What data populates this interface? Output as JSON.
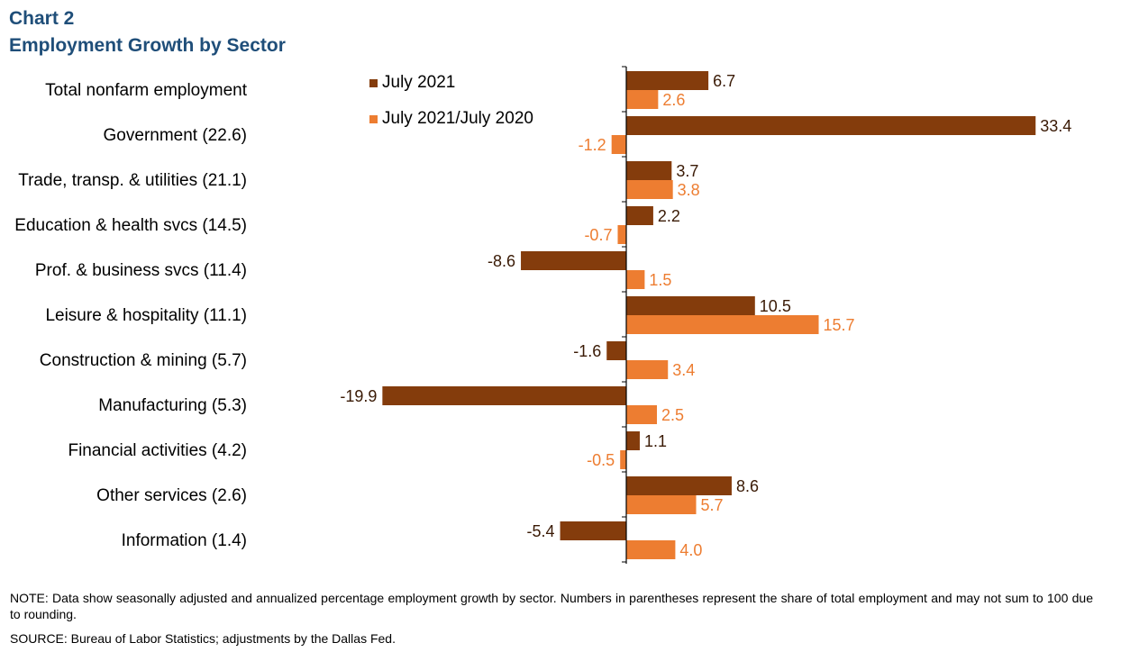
{
  "title": "Chart 2",
  "subtitle": "Employment  Growth by Sector",
  "note": "NOTE: Data show seasonally adjusted and annualized percentage employment growth by sector. Numbers in parentheses represent the share of total employment and may not sum to 100 due to rounding.",
  "source": "SOURCE: Bureau of Labor Statistics; adjustments  by the Dallas Fed.",
  "colors": {
    "july2021": "#843c0c",
    "yoy": "#ed7d31"
  },
  "chart_data": {
    "type": "bar",
    "orientation": "horizontal",
    "categories": [
      "Total nonfarm employment",
      "Government (22.6)",
      "Trade, transp. & utilities (21.1)",
      "Education & health svcs (14.5)",
      "Prof. & business svcs (11.4)",
      "Leisure & hospitality (11.1)",
      "Construction & mining (5.7)",
      "Manufacturing (5.3)",
      "Financial activities (4.2)",
      "Other services (2.6)",
      "Information (1.4)"
    ],
    "series": [
      {
        "name": "July 2021",
        "color": "#843c0c",
        "values": [
          6.7,
          33.4,
          3.7,
          2.2,
          -8.6,
          10.5,
          -1.6,
          -19.9,
          1.1,
          8.6,
          -5.4
        ]
      },
      {
        "name": "July 2021/July 2020",
        "color": "#ed7d31",
        "values": [
          2.6,
          -1.2,
          3.8,
          -0.7,
          1.5,
          15.7,
          3.4,
          2.5,
          -0.5,
          5.7,
          4.0
        ]
      }
    ],
    "data_labels": true,
    "legend": "top-center",
    "grid": false
  }
}
